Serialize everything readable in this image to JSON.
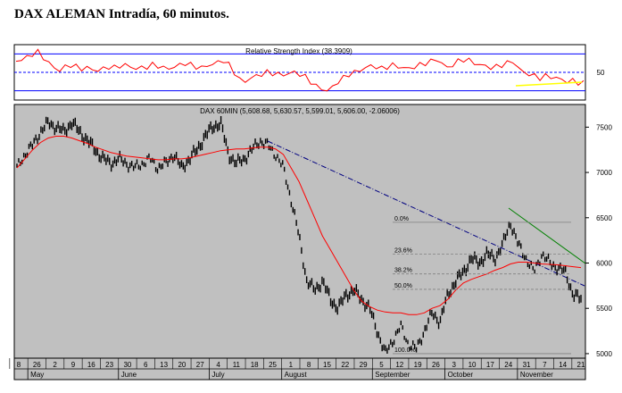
{
  "page_title": "DAX ALEMAN Intradía, 60 minutos.",
  "chart_data": [
    {
      "panel": "rsi",
      "type": "line",
      "title": "Relative Strength Index (38.3909)",
      "current_value": 38.3909,
      "y_ticks": [
        {
          "value": 50,
          "label": "50"
        }
      ],
      "reference_lines": [
        70,
        50,
        30
      ],
      "ylim": [
        20,
        80
      ],
      "series": [
        {
          "values": [
            62,
            64,
            66,
            70,
            72,
            66,
            60,
            55,
            52,
            56,
            58,
            56,
            54,
            55,
            53,
            52,
            54,
            56,
            55,
            57,
            58,
            56,
            54,
            55,
            56,
            58,
            57,
            55,
            54,
            56,
            58,
            60,
            58,
            56,
            55,
            57,
            59,
            61,
            63,
            58,
            50,
            42,
            40,
            44,
            46,
            48,
            50,
            49,
            48,
            47,
            49,
            50,
            48,
            45,
            40,
            35,
            32,
            30,
            34,
            40,
            44,
            48,
            50,
            52,
            55,
            57,
            56,
            54,
            56,
            58,
            56,
            55,
            54,
            56,
            58,
            60,
            62,
            64,
            60,
            55,
            58,
            62,
            64,
            63,
            60,
            58,
            57,
            55,
            56,
            58,
            60,
            62,
            55,
            50,
            48,
            46,
            44,
            46,
            45,
            44,
            42,
            40,
            41,
            39,
            38.4
          ]
        }
      ]
    },
    {
      "panel": "price",
      "type": "line",
      "title": "DAX 60MIN (5,608.68, 5,630.57, 5,599.01, 5,606.00, -2.06006)",
      "ylim": [
        4950,
        7750
      ],
      "y_ticks": [
        7500,
        7000,
        6500,
        6000,
        5500,
        5000
      ],
      "x_ticks": [
        "8",
        "26",
        "2",
        "9",
        "16",
        "23",
        "30",
        "6",
        "13",
        "20",
        "27",
        "4",
        "11",
        "18",
        "25",
        "1",
        "8",
        "15",
        "22",
        "29",
        "5",
        "12",
        "19",
        "26",
        "3",
        "10",
        "17",
        "24",
        "31",
        "7",
        "14",
        "21"
      ],
      "month_labels": [
        "May",
        "June",
        "July",
        "August",
        "September",
        "October",
        "November"
      ],
      "series": [
        {
          "values": [
            7050,
            7200,
            7300,
            7450,
            7550,
            7500,
            7450,
            7550,
            7450,
            7350,
            7250,
            7150,
            7100,
            7150,
            7100,
            7050,
            7100,
            7150,
            7050,
            7100,
            7200,
            7050,
            7150,
            7250,
            7400,
            7500,
            7550,
            7200,
            7100,
            7150,
            7250,
            7350,
            7300,
            7200,
            7050,
            6700,
            6300,
            5800,
            5700,
            5800,
            5600,
            5500,
            5650,
            5700,
            5600,
            5500,
            5250,
            5000,
            5150,
            5300,
            5100,
            5050,
            5250,
            5450,
            5350,
            5650,
            5800,
            5900,
            6050,
            6000,
            6100,
            6050,
            6200,
            6450,
            6200,
            6050,
            5900,
            6100,
            6000,
            5950,
            5900,
            5650,
            5600
          ]
        },
        {
          "values": [
            7050,
            7150,
            7250,
            7330,
            7380,
            7400,
            7400,
            7380,
            7350,
            7320,
            7280,
            7250,
            7220,
            7200,
            7180,
            7170,
            7160,
            7150,
            7140,
            7140,
            7150,
            7150,
            7160,
            7180,
            7200,
            7220,
            7240,
            7250,
            7260,
            7260,
            7270,
            7280,
            7280,
            7260,
            7200,
            7050,
            6900,
            6700,
            6500,
            6300,
            6150,
            6000,
            5850,
            5700,
            5580,
            5520,
            5480,
            5460,
            5450,
            5450,
            5430,
            5430,
            5450,
            5500,
            5530,
            5600,
            5700,
            5780,
            5820,
            5850,
            5880,
            5920,
            5950,
            5990,
            6010,
            6010,
            6000,
            5990,
            5985,
            5980,
            5970,
            5960,
            5950
          ]
        }
      ],
      "fibonacci_levels": [
        {
          "label": "0.0%",
          "value": 6450
        },
        {
          "label": "23.6%",
          "value": 6100
        },
        {
          "label": "38.2%",
          "value": 5880
        },
        {
          "label": "50.0%",
          "value": 5710
        },
        {
          "label": "100.0%",
          "value": 5000
        }
      ]
    }
  ]
}
